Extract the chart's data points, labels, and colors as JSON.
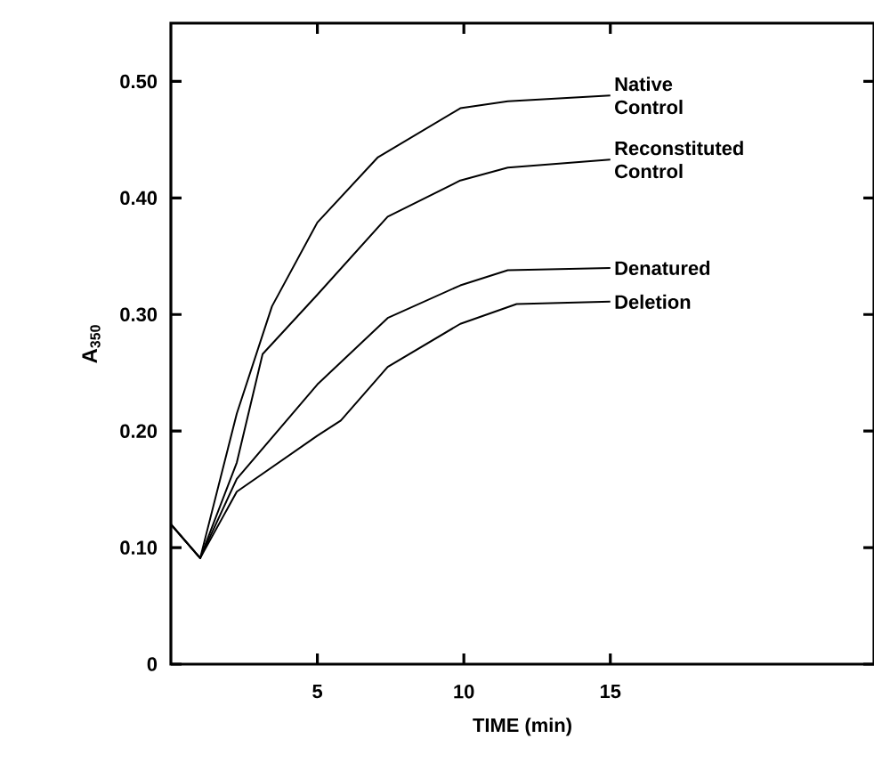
{
  "chart_data": {
    "type": "line",
    "xlabel": "TIME (min)",
    "ylabel": "A$_{350}$",
    "xlim": [
      0,
      24
    ],
    "ylim": [
      0,
      0.55
    ],
    "xticks": [
      5,
      10,
      15
    ],
    "yticks": [
      0,
      {
        "value": 0.1,
        "label": "0.10"
      },
      {
        "value": 0.2,
        "label": "0.20"
      },
      {
        "value": 0.3,
        "label": "0.30"
      },
      {
        "value": 0.4,
        "label": "0.40"
      },
      {
        "value": 0.5,
        "label": "0.50"
      }
    ],
    "legend": false,
    "grid": false,
    "marker": "none",
    "line_style": "solid",
    "series": [
      {
        "name": "Native Control",
        "color": "#000000",
        "x": [
          0,
          1,
          2.25,
          3.45,
          5,
          7.07,
          9.88,
          11.5,
          15
        ],
        "values": [
          0.12,
          0.091,
          0.215,
          0.307,
          0.379,
          0.435,
          0.477,
          0.483,
          0.488
        ]
      },
      {
        "name": "Reconstituted Control",
        "color": "#000000",
        "x": [
          0,
          1,
          2.25,
          3.13,
          5,
          7.4,
          9.88,
          11.5,
          15
        ],
        "values": [
          0.12,
          0.091,
          0.173,
          0.266,
          0.317,
          0.384,
          0.415,
          0.426,
          0.433
        ]
      },
      {
        "name": "Denatured",
        "color": "#000000",
        "x": [
          0,
          1,
          2.25,
          5,
          7.4,
          9.88,
          11.5,
          15
        ],
        "values": [
          0.12,
          0.091,
          0.159,
          0.24,
          0.297,
          0.325,
          0.338,
          0.34
        ]
      },
      {
        "name": "Deletion",
        "color": "#000000",
        "x": [
          0,
          1,
          2.25,
          5,
          5.8,
          7.4,
          9.88,
          11.8,
          15
        ],
        "values": [
          0.12,
          0.091,
          0.148,
          0.196,
          0.209,
          0.255,
          0.292,
          0.309,
          0.311
        ]
      }
    ]
  }
}
